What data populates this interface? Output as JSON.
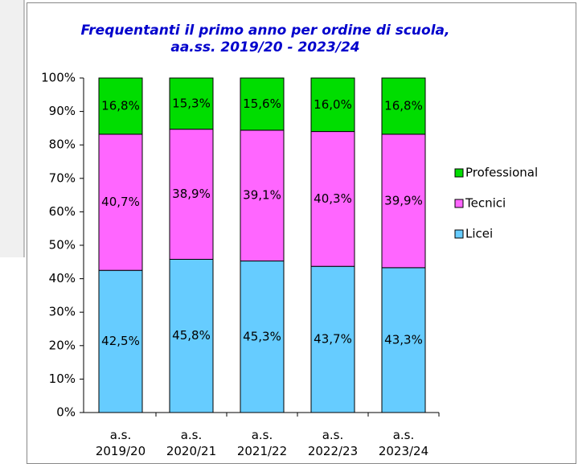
{
  "chart_data": {
    "type": "stacked-bar",
    "title": "Frequentanti il primo anno per ordine di scuola,\naa.ss. 2019/20 - 2023/24",
    "categories": [
      "a.s. 2019/20",
      "a.s. 2020/21",
      "a.s. 2021/22",
      "a.s. 2022/23",
      "a.s. 2023/24"
    ],
    "series": [
      {
        "name": "Licei",
        "color": "#66ccff",
        "values": [
          42.5,
          45.8,
          45.3,
          43.7,
          43.3
        ],
        "value_labels": [
          "42,5%",
          "45,8%",
          "45,3%",
          "43,7%",
          "43,3%"
        ]
      },
      {
        "name": "Tecnici",
        "color": "#ff66ff",
        "values": [
          40.7,
          38.9,
          39.1,
          40.3,
          39.9
        ],
        "value_labels": [
          "40,7%",
          "38,9%",
          "39,1%",
          "40,3%",
          "39,9%"
        ]
      },
      {
        "name": "Professional",
        "color": "#00dd00",
        "values": [
          16.8,
          15.3,
          15.6,
          16.0,
          16.8
        ],
        "value_labels": [
          "16,8%",
          "15,3%",
          "15,6%",
          "16,0%",
          "16,8%"
        ]
      }
    ],
    "ylim": [
      0,
      100
    ],
    "yticks": [
      {
        "value": 0,
        "label": "0%"
      },
      {
        "value": 10,
        "label": "10%"
      },
      {
        "value": 20,
        "label": "20%"
      },
      {
        "value": 30,
        "label": "30%"
      },
      {
        "value": 40,
        "label": "40%"
      },
      {
        "value": 50,
        "label": "50%"
      },
      {
        "value": 60,
        "label": "60%"
      },
      {
        "value": 70,
        "label": "70%"
      },
      {
        "value": 80,
        "label": "80%"
      },
      {
        "value": 90,
        "label": "90%"
      },
      {
        "value": 100,
        "label": "100%"
      }
    ],
    "legend": "right"
  }
}
